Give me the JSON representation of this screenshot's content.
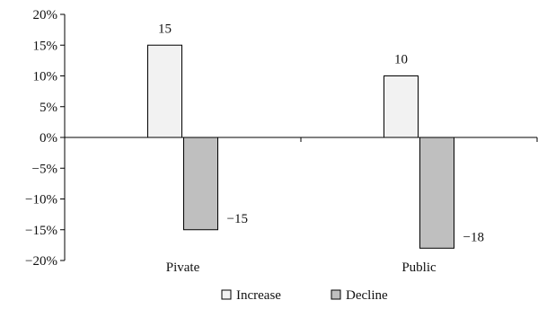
{
  "chart_data": {
    "type": "bar",
    "categories": [
      "Pivate",
      "Public"
    ],
    "series": [
      {
        "name": "Increase",
        "values": [
          15,
          10
        ],
        "color": "#f2f2f2"
      },
      {
        "name": "Decline",
        "values": [
          -15,
          -18
        ],
        "color": "#bfbfbf"
      }
    ],
    "data_labels": [
      [
        "15",
        "10"
      ],
      [
        "−15",
        "−18"
      ]
    ],
    "ylim": [
      -20,
      20
    ],
    "yticks": [
      20,
      15,
      10,
      5,
      0,
      -5,
      -10,
      -15,
      -20
    ],
    "ytick_labels": [
      "20%",
      "15%",
      "10%",
      "5%",
      "0%",
      "−5%",
      "−10%",
      "−15%",
      "−20%"
    ],
    "legend_position": "bottom",
    "grid": false,
    "title": "",
    "xlabel": "",
    "ylabel": ""
  },
  "colors": {
    "bar_edge": "#000000",
    "axis": "#000000",
    "increase_fill": "#f2f2f2",
    "decline_fill": "#bfbfbf"
  }
}
